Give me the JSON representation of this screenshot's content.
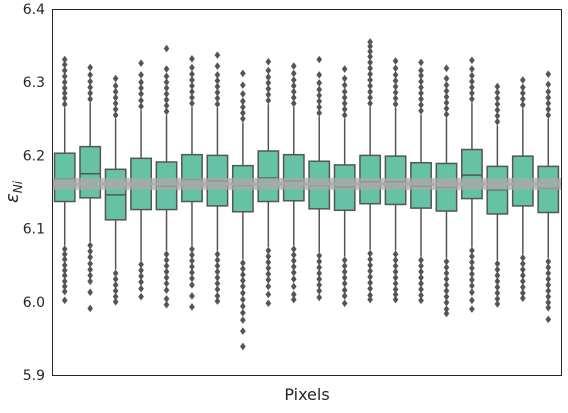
{
  "chart_data": {
    "type": "boxplot",
    "xlabel": "Pixels",
    "ylabel_symbol": "ε",
    "ylabel_subscript": "Ni",
    "ylim": [
      5.9,
      6.4
    ],
    "yticks": [
      5.9,
      6.0,
      6.1,
      6.2,
      6.3,
      6.4
    ],
    "ytick_labels": [
      "5.9",
      "6.0",
      "6.1",
      "6.2",
      "6.3",
      "6.4"
    ],
    "grid": false,
    "box_color": "#66c2a5",
    "line_color": "#555555",
    "reference": {
      "value": 6.161,
      "band": [
        6.153,
        6.169
      ],
      "color": "#a9a9a9"
    },
    "boxes": [
      {
        "q1": 6.137,
        "median": 6.168,
        "q3": 6.203,
        "whisker_low": 6.077,
        "whisker_high": 6.265,
        "outliers_low": [
          6.072,
          6.065,
          6.058,
          6.05,
          6.043,
          6.036,
          6.028,
          6.021,
          6.014,
          6.002
        ],
        "outliers_high": [
          6.27,
          6.278,
          6.285,
          6.292,
          6.3,
          6.308,
          6.316,
          6.324,
          6.331
        ]
      },
      {
        "q1": 6.142,
        "median": 6.175,
        "q3": 6.212,
        "whisker_low": 6.082,
        "whisker_high": 6.272,
        "outliers_low": [
          6.077,
          6.069,
          6.061,
          6.052,
          6.044,
          6.036,
          6.028,
          6.013,
          5.991
        ],
        "outliers_high": [
          6.277,
          6.285,
          6.293,
          6.301,
          6.31,
          6.32
        ]
      },
      {
        "q1": 6.112,
        "median": 6.146,
        "q3": 6.181,
        "whisker_low": 6.044,
        "whisker_high": 6.25,
        "outliers_low": [
          6.039,
          6.031,
          6.023,
          6.015,
          6.007,
          6.0
        ],
        "outliers_high": [
          6.255,
          6.263,
          6.271,
          6.279,
          6.287,
          6.295,
          6.305
        ]
      },
      {
        "q1": 6.126,
        "median": 6.16,
        "q3": 6.196,
        "whisker_low": 6.056,
        "whisker_high": 6.262,
        "outliers_low": [
          6.051,
          6.043,
          6.035,
          6.027,
          6.018,
          6.007
        ],
        "outliers_high": [
          6.267,
          6.275,
          6.284,
          6.292,
          6.3,
          6.31,
          6.326
        ]
      },
      {
        "q1": 6.126,
        "median": 6.158,
        "q3": 6.191,
        "whisker_low": 6.07,
        "whisker_high": 6.255,
        "outliers_low": [
          6.065,
          6.057,
          6.049,
          6.041,
          6.033,
          6.025,
          6.016,
          6.004,
          5.996
        ],
        "outliers_high": [
          6.26,
          6.268,
          6.276,
          6.284,
          6.292,
          6.3,
          6.308,
          6.318,
          6.346
        ]
      },
      {
        "q1": 6.137,
        "median": 6.167,
        "q3": 6.201,
        "whisker_low": 6.077,
        "whisker_high": 6.266,
        "outliers_low": [
          6.072,
          6.064,
          6.056,
          6.048,
          6.04,
          6.032,
          6.023,
          6.008,
          5.993
        ],
        "outliers_high": [
          6.271,
          6.279,
          6.287,
          6.295,
          6.303,
          6.311,
          6.32,
          6.332
        ]
      },
      {
        "q1": 6.131,
        "median": 6.165,
        "q3": 6.2,
        "whisker_low": 6.07,
        "whisker_high": 6.265,
        "outliers_low": [
          6.065,
          6.057,
          6.049,
          6.041,
          6.033,
          6.025,
          6.017,
          6.008,
          6.001
        ],
        "outliers_high": [
          6.27,
          6.278,
          6.286,
          6.294,
          6.302,
          6.31,
          6.322,
          6.337
        ]
      },
      {
        "q1": 6.123,
        "median": 6.159,
        "q3": 6.186,
        "whisker_low": 6.058,
        "whisker_high": 6.245,
        "outliers_low": [
          6.053,
          6.045,
          6.037,
          6.029,
          6.021,
          6.012,
          6.003,
          5.994,
          5.985,
          5.975,
          5.96,
          5.939
        ],
        "outliers_high": [
          6.25,
          6.258,
          6.266,
          6.274,
          6.284,
          6.296,
          6.312
        ]
      },
      {
        "q1": 6.137,
        "median": 6.169,
        "q3": 6.206,
        "whisker_low": 6.075,
        "whisker_high": 6.27,
        "outliers_low": [
          6.07,
          6.062,
          6.054,
          6.046,
          6.038,
          6.03,
          6.021,
          6.01,
          5.998
        ],
        "outliers_high": [
          6.275,
          6.283,
          6.291,
          6.299,
          6.307,
          6.316,
          6.328
        ]
      },
      {
        "q1": 6.138,
        "median": 6.165,
        "q3": 6.201,
        "whisker_low": 6.077,
        "whisker_high": 6.266,
        "outliers_low": [
          6.072,
          6.064,
          6.056,
          6.048,
          6.04,
          6.031,
          6.021,
          6.01,
          6.003
        ],
        "outliers_high": [
          6.271,
          6.279,
          6.287,
          6.295,
          6.303,
          6.312,
          6.322
        ]
      },
      {
        "q1": 6.127,
        "median": 6.159,
        "q3": 6.192,
        "whisker_low": 6.068,
        "whisker_high": 6.253,
        "outliers_low": [
          6.063,
          6.055,
          6.047,
          6.039,
          6.031,
          6.023,
          6.015,
          6.006
        ],
        "outliers_high": [
          6.258,
          6.266,
          6.274,
          6.282,
          6.29,
          6.299,
          6.31,
          6.331
        ]
      },
      {
        "q1": 6.125,
        "median": 6.157,
        "q3": 6.187,
        "whisker_low": 6.062,
        "whisker_high": 6.25,
        "outliers_low": [
          6.057,
          6.049,
          6.041,
          6.033,
          6.025,
          6.016,
          6.008,
          5.998
        ],
        "outliers_high": [
          6.255,
          6.263,
          6.271,
          6.279,
          6.287,
          6.296,
          6.305,
          6.318
        ]
      },
      {
        "q1": 6.134,
        "median": 6.164,
        "q3": 6.2,
        "whisker_low": 6.071,
        "whisker_high": 6.266,
        "outliers_low": [
          6.066,
          6.058,
          6.05,
          6.042,
          6.034,
          6.026,
          6.018,
          6.009,
          6.003
        ],
        "outliers_high": [
          6.271,
          6.279,
          6.287,
          6.295,
          6.303,
          6.311,
          6.319,
          6.327,
          6.335,
          6.342,
          6.349,
          6.355
        ]
      },
      {
        "q1": 6.133,
        "median": 6.164,
        "q3": 6.199,
        "whisker_low": 6.07,
        "whisker_high": 6.265,
        "outliers_low": [
          6.065,
          6.057,
          6.049,
          6.041,
          6.033,
          6.025,
          6.017,
          6.01,
          6.003
        ],
        "outliers_high": [
          6.27,
          6.278,
          6.286,
          6.294,
          6.302,
          6.31,
          6.319,
          6.329
        ]
      },
      {
        "q1": 6.128,
        "median": 6.158,
        "q3": 6.19,
        "whisker_low": 6.062,
        "whisker_high": 6.256,
        "outliers_low": [
          6.057,
          6.049,
          6.041,
          6.033,
          6.025,
          6.017,
          6.009,
          6.002
        ],
        "outliers_high": [
          6.261,
          6.269,
          6.277,
          6.285,
          6.293,
          6.301,
          6.309,
          6.316,
          6.327
        ]
      },
      {
        "q1": 6.124,
        "median": 6.156,
        "q3": 6.189,
        "whisker_low": 6.06,
        "whisker_high": 6.251,
        "outliers_low": [
          6.055,
          6.047,
          6.039,
          6.031,
          6.023,
          6.015,
          6.007,
          5.999,
          5.99,
          5.984
        ],
        "outliers_high": [
          6.256,
          6.264,
          6.272,
          6.28,
          6.288,
          6.296,
          6.305,
          6.319
        ]
      },
      {
        "q1": 6.141,
        "median": 6.173,
        "q3": 6.208,
        "whisker_low": 6.075,
        "whisker_high": 6.272,
        "outliers_low": [
          6.07,
          6.062,
          6.054,
          6.046,
          6.038,
          6.03,
          6.022,
          6.013,
          6.002,
          5.99
        ],
        "outliers_high": [
          6.277,
          6.285,
          6.293,
          6.301,
          6.309,
          6.318,
          6.33
        ]
      },
      {
        "q1": 6.12,
        "median": 6.153,
        "q3": 6.185,
        "whisker_low": 6.057,
        "whisker_high": 6.241,
        "outliers_low": [
          6.052,
          6.044,
          6.036,
          6.028,
          6.02,
          6.012,
          6.004,
          5.997
        ],
        "outliers_high": [
          6.246,
          6.254,
          6.262,
          6.27,
          6.278,
          6.286,
          6.294
        ]
      },
      {
        "q1": 6.131,
        "median": 6.162,
        "q3": 6.199,
        "whisker_low": 6.065,
        "whisker_high": 6.264,
        "outliers_low": [
          6.06,
          6.052,
          6.044,
          6.036,
          6.028,
          6.02,
          6.012,
          6.005
        ],
        "outliers_high": [
          6.269,
          6.277,
          6.285,
          6.293,
          6.303
        ]
      },
      {
        "q1": 6.122,
        "median": 6.155,
        "q3": 6.185,
        "whisker_low": 6.06,
        "whisker_high": 6.25,
        "outliers_low": [
          6.055,
          6.047,
          6.039,
          6.031,
          6.023,
          6.015,
          6.007,
          5.999,
          5.992,
          5.976
        ],
        "outliers_high": [
          6.255,
          6.263,
          6.271,
          6.279,
          6.287,
          6.297,
          6.311
        ]
      }
    ]
  }
}
